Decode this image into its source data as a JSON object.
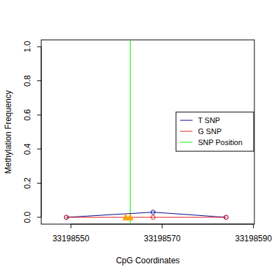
{
  "chart_data": {
    "type": "line",
    "x_label": "CpG Coordinates",
    "y_label": "Methylation Frequency",
    "x": [
      33198549,
      33198568,
      33198584
    ],
    "series": [
      {
        "name": "T SNP",
        "color": "#00008b",
        "values": [
          0,
          0.03,
          0
        ],
        "marker": "circle"
      },
      {
        "name": "G SNP",
        "color": "#e41a1c",
        "values": [
          0,
          0,
          0
        ],
        "marker": "circle"
      }
    ],
    "snp_position": 33198563,
    "snp_label": "SNP Position",
    "snp_color": "#00ee00",
    "snp_markers": {
      "x": [
        33198562,
        33198563
      ],
      "values": [
        0,
        0
      ],
      "color": "#ffa500",
      "marker": "triangle"
    },
    "xlim": [
      33198543.5,
      33198590.2
    ],
    "xticks": [
      33198550,
      33198570,
      33198590
    ],
    "ylim": [
      -0.04,
      1.04
    ],
    "yticks": [
      {
        "value": 0,
        "label": "0.0"
      },
      0.2,
      0.4,
      0.6,
      0.8,
      {
        "value": 1,
        "label": "1.0"
      }
    ],
    "legend": "right",
    "grid": false
  }
}
